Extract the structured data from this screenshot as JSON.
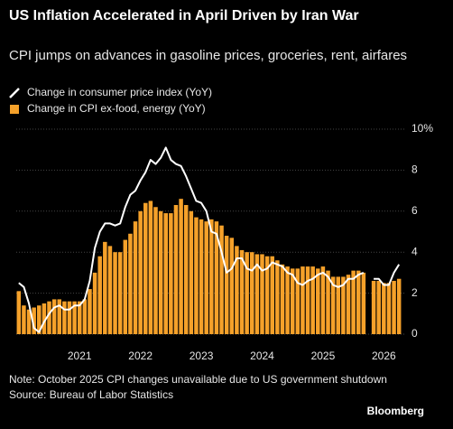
{
  "chart_data": {
    "type": "bar-line",
    "title": "US Inflation Accelerated in April Driven by Iran War",
    "subtitle": "CPI jumps on advances in gasoline prices, groceries, rent, airfares",
    "categories": [
      null,
      null,
      null,
      null,
      null,
      null,
      null,
      null,
      null,
      null,
      null,
      null,
      "2021",
      null,
      null,
      null,
      null,
      null,
      null,
      null,
      null,
      null,
      null,
      null,
      "2022",
      null,
      null,
      null,
      null,
      null,
      null,
      null,
      null,
      null,
      null,
      null,
      "2023",
      null,
      null,
      null,
      null,
      null,
      null,
      null,
      null,
      null,
      null,
      null,
      "2024",
      null,
      null,
      null,
      null,
      null,
      null,
      null,
      null,
      null,
      null,
      null,
      "2025",
      null,
      null,
      null,
      null,
      null,
      null,
      null,
      null,
      null,
      null,
      null,
      "2026",
      null,
      null,
      null
    ],
    "series": [
      {
        "name": "Change in consumer price index (YoY)",
        "color": "#ffffff",
        "kind": "line",
        "values": [
          2.5,
          2.3,
          1.5,
          0.3,
          0.1,
          0.6,
          1.0,
          1.3,
          1.4,
          1.2,
          1.2,
          1.4,
          1.4,
          1.7,
          2.6,
          4.2,
          5.0,
          5.4,
          5.4,
          5.3,
          5.4,
          6.2,
          6.8,
          7.0,
          7.5,
          7.9,
          8.5,
          8.3,
          8.6,
          9.1,
          8.5,
          8.3,
          8.2,
          7.7,
          7.1,
          6.5,
          6.4,
          6.0,
          5.0,
          4.9,
          4.0,
          3.0,
          3.2,
          3.7,
          3.7,
          3.2,
          3.1,
          3.4,
          3.1,
          3.2,
          3.5,
          3.4,
          3.3,
          3.0,
          2.9,
          2.5,
          2.4,
          2.6,
          2.7,
          2.9,
          3.0,
          2.8,
          2.4,
          2.3,
          2.4,
          2.7,
          2.7,
          2.9,
          3.0,
          null,
          2.7,
          2.7,
          2.4,
          2.4,
          3.0,
          3.4
        ]
      },
      {
        "name": "Change in CPI ex-food, energy (YoY)",
        "color": "#f5a12a",
        "kind": "bar",
        "values": [
          2.1,
          1.4,
          1.2,
          1.3,
          1.4,
          1.5,
          1.6,
          1.7,
          1.7,
          1.6,
          1.6,
          1.6,
          1.6,
          1.7,
          2.2,
          3.0,
          3.8,
          4.5,
          4.3,
          4.0,
          4.0,
          4.6,
          4.9,
          5.5,
          6.0,
          6.4,
          6.5,
          6.2,
          6.0,
          5.9,
          5.9,
          6.3,
          6.6,
          6.3,
          6.0,
          5.7,
          5.6,
          5.5,
          5.6,
          5.5,
          5.3,
          4.8,
          4.7,
          4.3,
          4.1,
          4.0,
          4.0,
          3.9,
          3.9,
          3.8,
          3.8,
          3.6,
          3.4,
          3.3,
          3.2,
          3.2,
          3.3,
          3.3,
          3.3,
          3.2,
          3.3,
          3.1,
          2.8,
          2.8,
          2.8,
          2.9,
          3.1,
          3.1,
          3.0,
          null,
          2.6,
          2.6,
          2.5,
          2.5,
          2.6,
          2.7
        ]
      }
    ],
    "ylim": [
      0,
      10
    ],
    "yticks": [
      0,
      2,
      4,
      6,
      8,
      {
        "value": 10,
        "label": "10%"
      }
    ],
    "grid": true,
    "note": "Note: October 2025 CPI changes unavailable due to US government shutdown",
    "source": "Source: Bureau of Labor Statistics",
    "logo": "Bloomberg"
  }
}
